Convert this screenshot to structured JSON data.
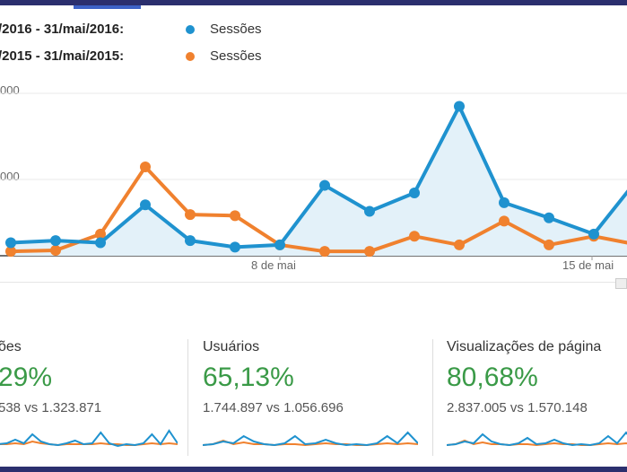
{
  "legend": [
    {
      "range": "/2016 - 31/mai/2016:",
      "series": "Sessões",
      "color": "#1f92cf"
    },
    {
      "range": "/2015 - 31/mai/2015:",
      "series": "Sessões",
      "color": "#f0812e"
    }
  ],
  "y_labels": [
    "000",
    "000"
  ],
  "x_labels": [
    "8 de mai",
    "15 de mai"
  ],
  "chart_data": {
    "type": "line",
    "x": [
      1,
      2,
      3,
      4,
      5,
      6,
      7,
      8,
      9,
      10,
      11,
      12,
      13,
      14,
      15
    ],
    "series": [
      {
        "values": [
          12,
          14,
          12,
          47,
          14,
          8,
          10,
          65,
          41,
          58,
          138,
          49,
          35,
          20,
          72
        ],
        "color": "#1f92cf"
      },
      {
        "values": [
          4,
          5,
          20,
          82,
          38,
          37,
          10,
          4,
          4,
          18,
          10,
          32,
          10,
          18,
          10
        ],
        "color": "#f0812e"
      }
    ]
  },
  "metrics": [
    {
      "title": "ões",
      "percent": "29%",
      "comparison": "538 vs 1.323.871"
    },
    {
      "title": "Usuários",
      "percent": "65,13%",
      "comparison": "1.744.897 vs 1.056.696"
    },
    {
      "title": "Visualizações de página",
      "percent": "80,68%",
      "comparison": "2.837.005 vs 1.570.148"
    }
  ],
  "sparklines": [
    {
      "blue": [
        5,
        6,
        10,
        6,
        16,
        8,
        5,
        4,
        6,
        9,
        5,
        6,
        18,
        6,
        3,
        5,
        4,
        6,
        16,
        5,
        20,
        6
      ],
      "orange": [
        5,
        5,
        6,
        5,
        8,
        6,
        5,
        4,
        5,
        5,
        5,
        5,
        6,
        5,
        5,
        4,
        4,
        5,
        6,
        5,
        6,
        5
      ]
    },
    {
      "blue": [
        4,
        5,
        8,
        6,
        14,
        8,
        5,
        4,
        6,
        14,
        5,
        6,
        10,
        6,
        4,
        5,
        4,
        6,
        14,
        6,
        18,
        6
      ],
      "orange": [
        4,
        5,
        9,
        5,
        7,
        5,
        5,
        4,
        5,
        5,
        4,
        5,
        6,
        5,
        5,
        4,
        4,
        5,
        6,
        5,
        6,
        5
      ]
    },
    {
      "blue": [
        4,
        5,
        8,
        6,
        16,
        8,
        5,
        4,
        6,
        12,
        5,
        6,
        10,
        6,
        4,
        5,
        4,
        6,
        14,
        6,
        18,
        6
      ],
      "orange": [
        4,
        5,
        9,
        5,
        7,
        5,
        5,
        4,
        5,
        5,
        4,
        5,
        6,
        5,
        5,
        4,
        4,
        5,
        6,
        5,
        6,
        5
      ]
    }
  ]
}
